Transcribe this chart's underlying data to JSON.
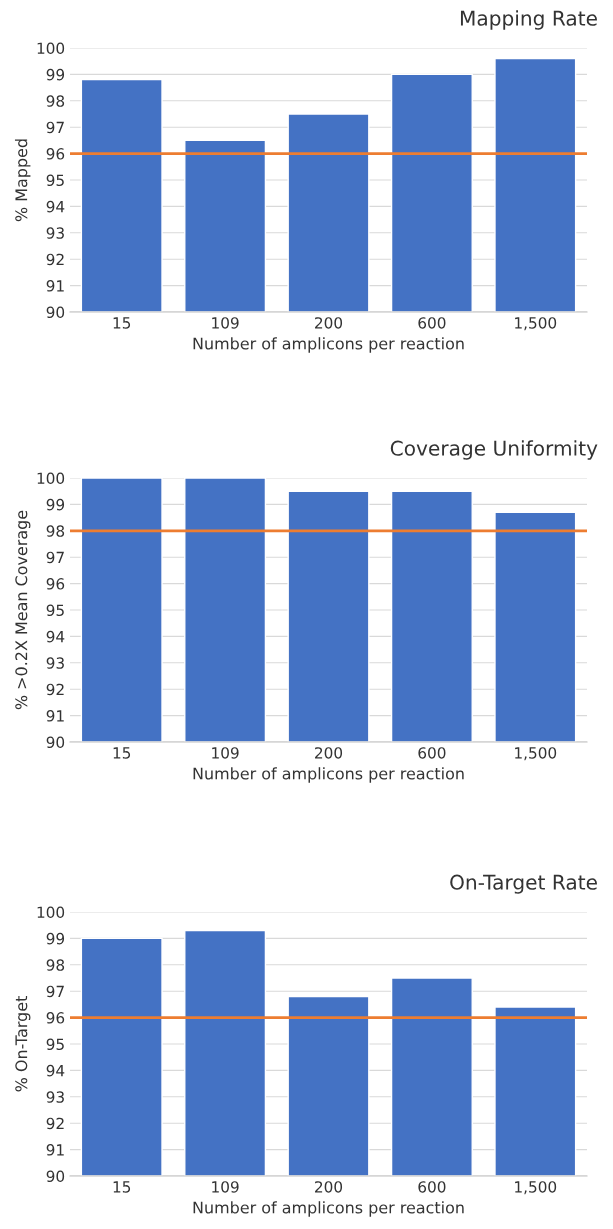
{
  "chart_data": [
    {
      "type": "bar",
      "title": "Mapping Rate",
      "xlabel": "Number of amplicons per reaction",
      "ylabel": "% Mapped",
      "categories": [
        "15",
        "109",
        "200",
        "600",
        "1,500"
      ],
      "values": [
        98.8,
        96.5,
        97.5,
        99.0,
        99.6
      ],
      "color": "#4472c4",
      "ylim": [
        90,
        100
      ],
      "yticks": [
        90,
        91,
        92,
        93,
        94,
        95,
        96,
        97,
        98,
        99,
        100
      ],
      "grid": "y",
      "ref_lines": [
        {
          "axis": "y",
          "value": 96,
          "color": "#ed7d31"
        }
      ]
    },
    {
      "type": "bar",
      "title": "Coverage Uniformity",
      "xlabel": "Number of amplicons per reaction",
      "ylabel": "% >0.2X Mean Coverage",
      "categories": [
        "15",
        "109",
        "200",
        "600",
        "1,500"
      ],
      "values": [
        100,
        100,
        99.5,
        99.5,
        98.7
      ],
      "color": "#4472c4",
      "ylim": [
        90,
        100
      ],
      "yticks": [
        90,
        91,
        92,
        93,
        94,
        95,
        96,
        97,
        98,
        99,
        100
      ],
      "grid": "y",
      "ref_lines": [
        {
          "axis": "y",
          "value": 98,
          "color": "#ed7d31"
        }
      ]
    },
    {
      "type": "bar",
      "title": "On-Target Rate",
      "xlabel": "Number of amplicons per reaction",
      "ylabel": "% On-Target",
      "categories": [
        "15",
        "109",
        "200",
        "600",
        "1,500"
      ],
      "values": [
        99.0,
        99.3,
        96.8,
        97.5,
        96.4
      ],
      "color": "#4472c4",
      "ylim": [
        90,
        100
      ],
      "yticks": [
        90,
        91,
        92,
        93,
        94,
        95,
        96,
        97,
        98,
        99,
        100
      ],
      "grid": "y",
      "ref_lines": [
        {
          "axis": "y",
          "value": 96,
          "color": "#ed7d31"
        }
      ]
    }
  ]
}
